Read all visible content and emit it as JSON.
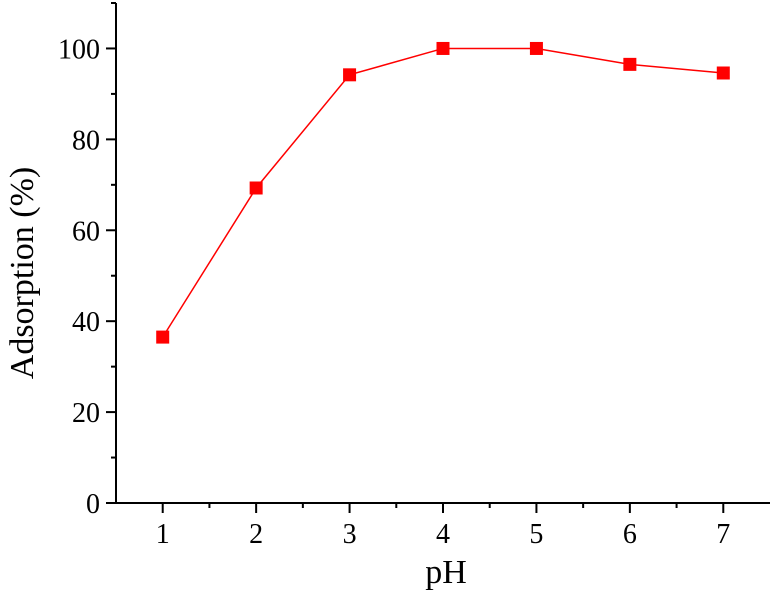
{
  "chart_data": {
    "type": "line",
    "title": "",
    "xlabel": "pH",
    "ylabel": "Adsorption (%)",
    "x": [
      1,
      2,
      3,
      4,
      5,
      6,
      7
    ],
    "series": [
      {
        "values": [
          36.5,
          69.3,
          94.2,
          100.0,
          100.0,
          96.5,
          94.6
        ],
        "marker": "square",
        "color": "#ff0000"
      }
    ],
    "xlim": [
      0.5,
      7.5
    ],
    "ylim": [
      0,
      110
    ],
    "xticks": [
      1,
      2,
      3,
      4,
      5,
      6,
      7
    ],
    "yticks": [
      0,
      20,
      40,
      60,
      80,
      100
    ],
    "grid": false,
    "legend": "none"
  }
}
